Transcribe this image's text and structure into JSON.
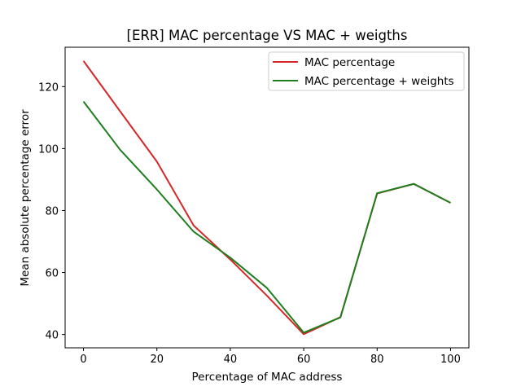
{
  "chart_data": {
    "type": "line",
    "title": "[ERR] MAC percentage VS MAC + weigths",
    "xlabel": "Percentage of MAC address",
    "ylabel": "Mean absolute percentage error",
    "x": [
      0,
      10,
      20,
      30,
      40,
      50,
      60,
      70,
      80,
      90,
      100
    ],
    "xlim": [
      -5,
      105
    ],
    "ylim": [
      35.7,
      132.7
    ],
    "xticks": [
      0,
      20,
      40,
      60,
      80,
      100
    ],
    "yticks": [
      40,
      60,
      80,
      100,
      120
    ],
    "grid": false,
    "legend_position": "upper right",
    "series": [
      {
        "name": "MAC percentage",
        "color": "#d62728",
        "values": [
          128.3,
          112.0,
          95.8,
          75.2,
          64.2,
          52.5,
          40.1,
          45.6,
          85.5,
          88.6,
          82.5
        ]
      },
      {
        "name": "MAC percentage + weights",
        "color": "#1f7f1f",
        "values": [
          115.2,
          99.6,
          86.8,
          73.2,
          64.8,
          55.0,
          40.6,
          45.5,
          85.6,
          88.6,
          82.5
        ]
      }
    ]
  }
}
